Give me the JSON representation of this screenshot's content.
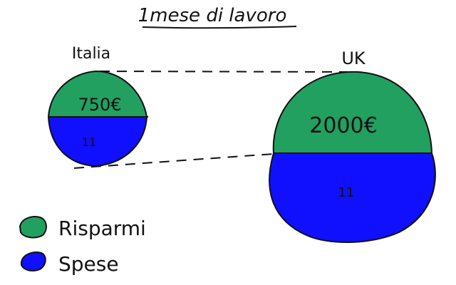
{
  "title": "1mese di lavoro",
  "countries": [
    {
      "name": "Italia",
      "savings_label": "750€",
      "expenses_label": "11"
    },
    {
      "name": "UK",
      "savings_label": "2000€",
      "expenses_label": "11"
    }
  ],
  "legend": [
    {
      "label": "Risparmi",
      "color": "#21a060",
      "icon": "green-blob"
    },
    {
      "label": "Spese",
      "color": "#1010ff",
      "icon": "blue-blob"
    }
  ],
  "colors": {
    "savings": "#21a060",
    "expenses": "#1010ff",
    "ink": "#111111"
  }
}
